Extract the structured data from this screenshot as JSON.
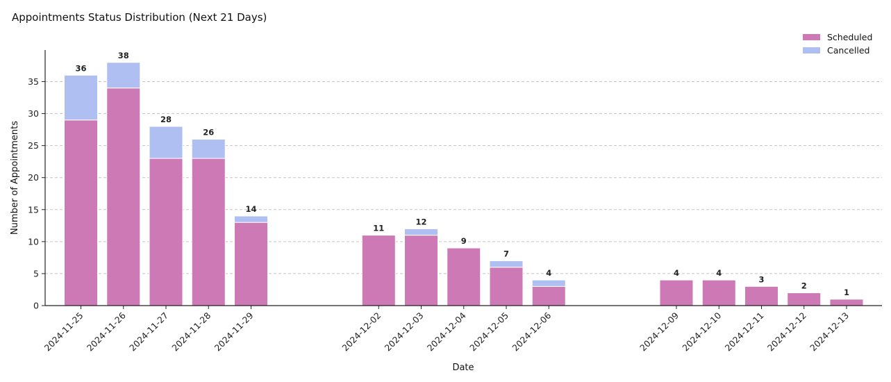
{
  "chart_data": {
    "type": "bar",
    "stacked": true,
    "title": "Appointments Status Distribution (Next 21 Days)",
    "xlabel": "Date",
    "ylabel": "Number of Appointments",
    "ylim": [
      0,
      40
    ],
    "yticks": [
      0,
      5,
      10,
      15,
      20,
      25,
      30,
      35
    ],
    "grid": "horizontal dashed",
    "legend_position": "top-right",
    "categories": [
      "2024-11-25",
      "2024-11-26",
      "2024-11-27",
      "2024-11-28",
      "2024-11-29",
      "2024-12-02",
      "2024-12-03",
      "2024-12-04",
      "2024-12-05",
      "2024-12-06",
      "2024-12-09",
      "2024-12-10",
      "2024-12-11",
      "2024-12-12",
      "2024-12-13"
    ],
    "series": [
      {
        "name": "Scheduled",
        "color": "#cc79b5",
        "values": [
          29,
          34,
          23,
          23,
          13,
          11,
          11,
          9,
          6,
          3,
          4,
          4,
          3,
          2,
          1
        ]
      },
      {
        "name": "Cancelled",
        "color": "#b0bff2",
        "values": [
          7,
          4,
          5,
          3,
          1,
          0,
          1,
          0,
          1,
          1,
          0,
          0,
          0,
          0,
          0
        ]
      }
    ],
    "totals": [
      36,
      38,
      28,
      26,
      14,
      11,
      12,
      9,
      7,
      4,
      4,
      4,
      3,
      2,
      1
    ]
  }
}
